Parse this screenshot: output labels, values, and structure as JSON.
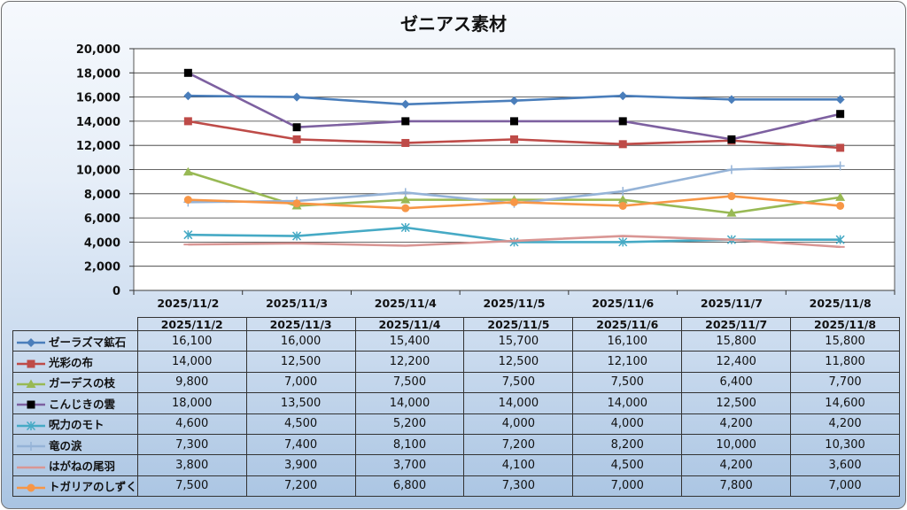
{
  "chart_data": {
    "type": "line",
    "title": "ゼニアス素材",
    "categories": [
      "2025/11/2",
      "2025/11/3",
      "2025/11/4",
      "2025/11/5",
      "2025/11/6",
      "2025/11/7",
      "2025/11/8"
    ],
    "ylim": [
      0,
      20000
    ],
    "yticks": [
      "0",
      "2,000",
      "4,000",
      "6,000",
      "8,000",
      "10,000",
      "12,000",
      "14,000",
      "16,000",
      "18,000",
      "20,000"
    ],
    "grid": true,
    "legend": "data-table",
    "series": [
      {
        "name": "ゼーラズマ鉱石",
        "color": "#4a7ebb",
        "marker": "diamond",
        "values": [
          16100,
          16000,
          15400,
          15700,
          16100,
          15800,
          15800
        ],
        "labels": [
          "16,100",
          "16,000",
          "15,400",
          "15,700",
          "16,100",
          "15,800",
          "15,800"
        ]
      },
      {
        "name": "光彩の布",
        "color": "#be4b48",
        "marker": "square",
        "values": [
          14000,
          12500,
          12200,
          12500,
          12100,
          12400,
          11800
        ],
        "labels": [
          "14,000",
          "12,500",
          "12,200",
          "12,500",
          "12,100",
          "12,400",
          "11,800"
        ]
      },
      {
        "name": "ガーデスの枝",
        "color": "#98b954",
        "marker": "triangle",
        "values": [
          9800,
          7000,
          7500,
          7500,
          7500,
          6400,
          7700
        ],
        "labels": [
          "9,800",
          "7,000",
          "7,500",
          "7,500",
          "7,500",
          "6,400",
          "7,700"
        ]
      },
      {
        "name": "こんじきの雲",
        "color": "#7d60a0",
        "marker": "square-black",
        "values": [
          18000,
          13500,
          14000,
          14000,
          14000,
          12500,
          14600
        ],
        "labels": [
          "18,000",
          "13,500",
          "14,000",
          "14,000",
          "14,000",
          "12,500",
          "14,600"
        ]
      },
      {
        "name": "呪力のモト",
        "color": "#46aac5",
        "marker": "x-star",
        "values": [
          4600,
          4500,
          5200,
          4000,
          4000,
          4200,
          4200
        ],
        "labels": [
          "4,600",
          "4,500",
          "5,200",
          "4,000",
          "4,000",
          "4,200",
          "4,200"
        ]
      },
      {
        "name": "竜の涙",
        "color": "#95b3d7",
        "marker": "plus",
        "values": [
          7300,
          7400,
          8100,
          7200,
          8200,
          10000,
          10300
        ],
        "labels": [
          "7,300",
          "7,400",
          "8,100",
          "7,200",
          "8,200",
          "10,000",
          "10,300"
        ]
      },
      {
        "name": "はがねの尾羽",
        "color": "#d99694",
        "marker": "dash",
        "values": [
          3800,
          3900,
          3700,
          4100,
          4500,
          4200,
          3600
        ],
        "labels": [
          "3,800",
          "3,900",
          "3,700",
          "4,100",
          "4,500",
          "4,200",
          "3,600"
        ]
      },
      {
        "name": "トガリアのしずく",
        "color": "#f79646",
        "marker": "circle",
        "values": [
          7500,
          7200,
          6800,
          7300,
          7000,
          7800,
          7000
        ],
        "labels": [
          "7,500",
          "7,200",
          "6,800",
          "7,300",
          "7,000",
          "7,800",
          "7,000"
        ]
      }
    ]
  }
}
